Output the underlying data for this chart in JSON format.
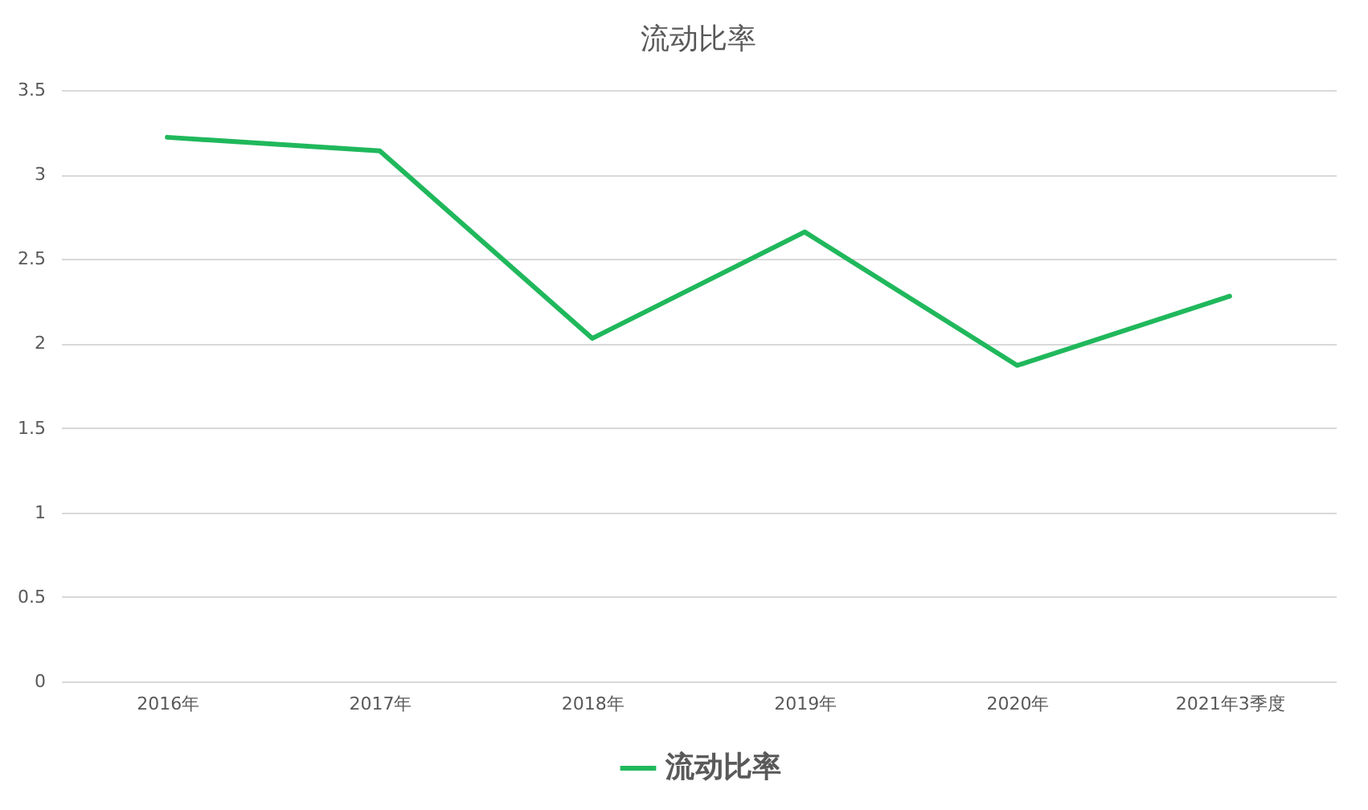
{
  "chart_data": {
    "type": "line",
    "title": "流动比率",
    "categories": [
      "2016年",
      "2017年",
      "2018年",
      "2019年",
      "2020年",
      "2021年3季度"
    ],
    "series": [
      {
        "name": "流动比率",
        "color": "#20b85c",
        "values": [
          3.22,
          3.14,
          2.03,
          2.66,
          1.87,
          2.28
        ]
      }
    ],
    "ylim": [
      0,
      3.5
    ],
    "yticks": [
      0,
      0.5,
      1,
      1.5,
      2,
      2.5,
      3,
      3.5
    ],
    "grid": "y",
    "legend": "bottom",
    "marker": "none",
    "line_style": "solid"
  }
}
